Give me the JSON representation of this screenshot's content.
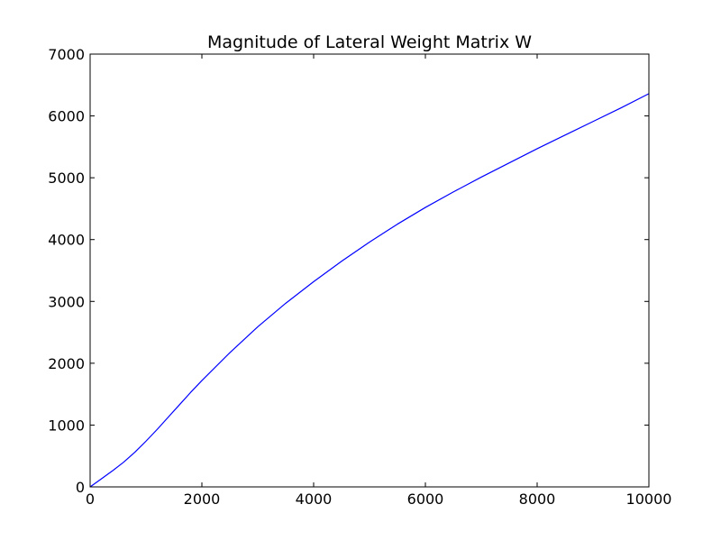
{
  "chart_data": {
    "type": "line",
    "title": "Magnitude of Lateral Weight Matrix W",
    "xlabel": "",
    "ylabel": "",
    "xlim": [
      0,
      10000
    ],
    "ylim": [
      0,
      7000
    ],
    "x_ticks": [
      "0",
      "2000",
      "4000",
      "6000",
      "8000",
      "10000"
    ],
    "y_ticks": [
      "0",
      "1000",
      "2000",
      "3000",
      "4000",
      "5000",
      "6000",
      "7000"
    ],
    "grid": false,
    "legend": "none",
    "series": [
      {
        "color": "#0000ff",
        "x": [
          0,
          200,
          400,
          600,
          800,
          1000,
          1200,
          1400,
          1600,
          1800,
          2000,
          2500,
          3000,
          3500,
          4000,
          4500,
          5000,
          5500,
          6000,
          6500,
          7000,
          7500,
          8000,
          8500,
          9000,
          9500,
          10000
        ],
        "y": [
          0,
          130,
          260,
          400,
          560,
          740,
          930,
          1130,
          1330,
          1530,
          1720,
          2170,
          2590,
          2970,
          3320,
          3650,
          3960,
          4250,
          4520,
          4770,
          5010,
          5240,
          5470,
          5690,
          5910,
          6130,
          6360
        ]
      }
    ]
  }
}
